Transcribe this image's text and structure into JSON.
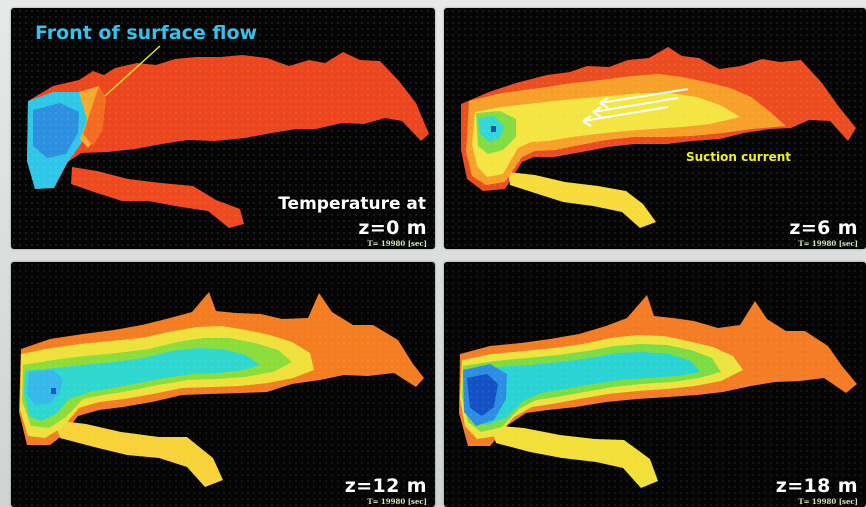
{
  "figure": {
    "top_left": {
      "heading": "Front of surface flow",
      "label_line_1": "Temperature at",
      "depth": "z=0 m",
      "time": "T= 19980  [sec]"
    },
    "top_right": {
      "annotation": "Suction current",
      "depth": "z=6 m",
      "time": "T= 19980  [sec]"
    },
    "bottom_left": {
      "depth": "z=12 m",
      "time": "T= 19980  [sec]"
    },
    "bottom_right": {
      "depth": "z=18 m",
      "time": "T= 19980  [sec]"
    }
  },
  "colors": {
    "background": "#050505",
    "warm_red": "#ea3f1c",
    "orange": "#f8831f",
    "yellow": "#f6e63a",
    "green": "#95df37",
    "cyan": "#2fd8e0",
    "blue": "#166cd8",
    "annotation_blue": "#39c0e8",
    "annotation_yellow": "#f2ef20"
  }
}
